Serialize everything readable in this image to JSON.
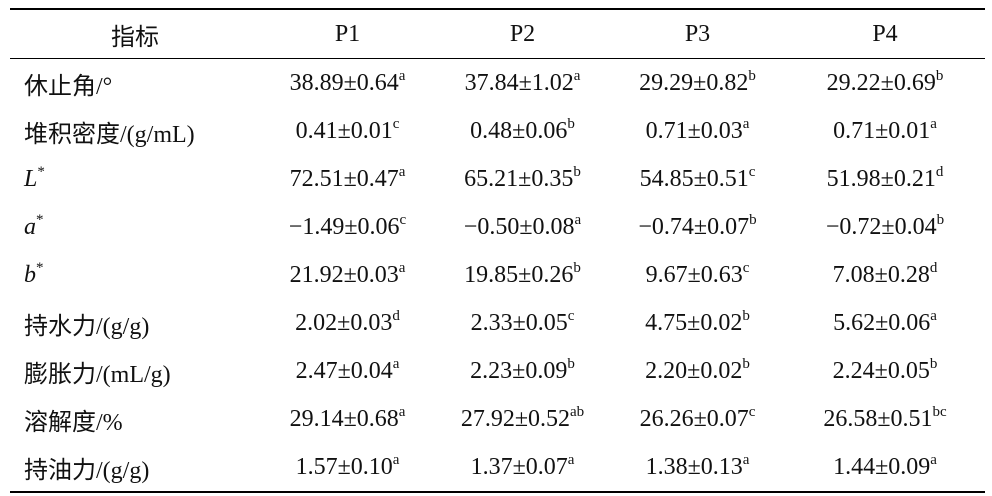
{
  "table": {
    "header": [
      "指标",
      "P1",
      "P2",
      "P3",
      "P4"
    ],
    "rows": [
      {
        "label": "休止角/°",
        "cells": [
          {
            "value": "38.89±0.64",
            "sup": "a"
          },
          {
            "value": "37.84±1.02",
            "sup": "a"
          },
          {
            "value": "29.29±0.82",
            "sup": "b"
          },
          {
            "value": "29.22±0.69",
            "sup": "b"
          }
        ]
      },
      {
        "label": "堆积密度/(g/mL)",
        "cells": [
          {
            "value": "0.41±0.01",
            "sup": "c"
          },
          {
            "value": "0.48±0.06",
            "sup": "b"
          },
          {
            "value": "0.71±0.03",
            "sup": "a"
          },
          {
            "value": "0.71±0.01",
            "sup": "a"
          }
        ]
      },
      {
        "label": "L",
        "label_sup": "*",
        "cells": [
          {
            "value": "72.51±0.47",
            "sup": "a"
          },
          {
            "value": "65.21±0.35",
            "sup": "b"
          },
          {
            "value": "54.85±0.51",
            "sup": "c"
          },
          {
            "value": "51.98±0.21",
            "sup": "d"
          }
        ]
      },
      {
        "label": "a",
        "label_sup": "*",
        "cells": [
          {
            "value": "−1.49±0.06",
            "sup": "c"
          },
          {
            "value": "−0.50±0.08",
            "sup": "a"
          },
          {
            "value": "−0.74±0.07",
            "sup": "b"
          },
          {
            "value": "−0.72±0.04",
            "sup": "b"
          }
        ]
      },
      {
        "label": "b",
        "label_sup": "*",
        "cells": [
          {
            "value": "21.92±0.03",
            "sup": "a"
          },
          {
            "value": "19.85±0.26",
            "sup": "b"
          },
          {
            "value": "9.67±0.63",
            "sup": "c"
          },
          {
            "value": "7.08±0.28",
            "sup": "d"
          }
        ]
      },
      {
        "label": "持水力/(g/g)",
        "cells": [
          {
            "value": "2.02±0.03",
            "sup": "d"
          },
          {
            "value": "2.33±0.05",
            "sup": "c"
          },
          {
            "value": "4.75±0.02",
            "sup": "b"
          },
          {
            "value": "5.62±0.06",
            "sup": "a"
          }
        ]
      },
      {
        "label": "膨胀力/(mL/g)",
        "cells": [
          {
            "value": "2.47±0.04",
            "sup": "a"
          },
          {
            "value": "2.23±0.09",
            "sup": "b"
          },
          {
            "value": "2.20±0.02",
            "sup": "b"
          },
          {
            "value": "2.24±0.05",
            "sup": "b"
          }
        ]
      },
      {
        "label": "溶解度/%",
        "cells": [
          {
            "value": "29.14±0.68",
            "sup": "a"
          },
          {
            "value": "27.92±0.52",
            "sup": "ab"
          },
          {
            "value": "26.26±0.07",
            "sup": "c"
          },
          {
            "value": "26.58±0.51",
            "sup": "bc"
          }
        ]
      },
      {
        "label": "持油力/(g/g)",
        "cells": [
          {
            "value": "1.57±0.10",
            "sup": "a"
          },
          {
            "value": "1.37±0.07",
            "sup": "a"
          },
          {
            "value": "1.38±0.13",
            "sup": "a"
          },
          {
            "value": "1.44±0.09",
            "sup": "a"
          }
        ]
      }
    ]
  }
}
